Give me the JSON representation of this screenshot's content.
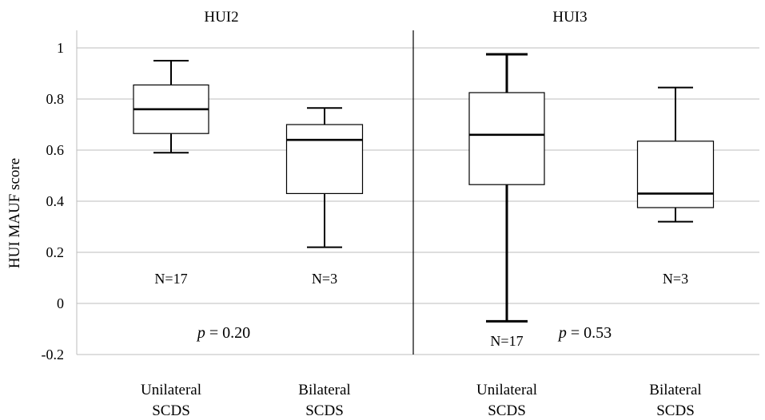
{
  "chart_data": {
    "type": "box",
    "ylabel": "HUI MAUF score",
    "ylim": [
      -0.2,
      1.0
    ],
    "yticks": [
      -0.2,
      0,
      0.2,
      0.4,
      0.6,
      0.8,
      1
    ],
    "ytick_labels": [
      "-0.2",
      "0",
      "0.2",
      "0.4",
      "0.6",
      "0.8",
      "1"
    ],
    "grid": true,
    "panels": [
      {
        "title": "HUI2",
        "p_label": "p",
        "p_text": " = 0.20",
        "groups": [
          {
            "category": [
              "Unilateral",
              "SCDS"
            ],
            "n_label": "N=17",
            "min": 0.59,
            "q1": 0.665,
            "median": 0.76,
            "q3": 0.855,
            "max": 0.95
          },
          {
            "category": [
              "Bilateral",
              "SCDS"
            ],
            "n_label": "N=3",
            "min": 0.22,
            "q1": 0.43,
            "median": 0.64,
            "q3": 0.7,
            "max": 0.765
          }
        ]
      },
      {
        "title": "HUI3",
        "p_label": "p",
        "p_text": " = 0.53",
        "groups": [
          {
            "category": [
              "Unilateral",
              "SCDS"
            ],
            "n_label": "N=17",
            "min": -0.07,
            "q1": 0.465,
            "median": 0.66,
            "q3": 0.825,
            "max": 0.975
          },
          {
            "category": [
              "Bilateral",
              "SCDS"
            ],
            "n_label": "N=3",
            "min": 0.32,
            "q1": 0.375,
            "median": 0.43,
            "q3": 0.635,
            "max": 0.845
          }
        ]
      }
    ]
  }
}
